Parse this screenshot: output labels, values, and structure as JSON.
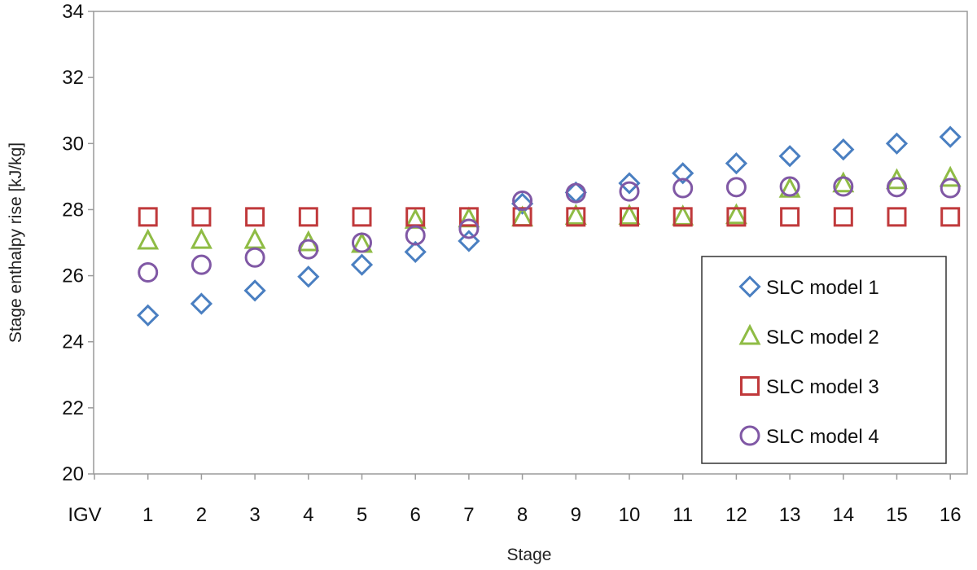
{
  "chart_data": {
    "type": "scatter",
    "title": "",
    "xlabel": "Stage",
    "ylabel": "Stage enthalpy rise [kJ/kg]",
    "ylim": [
      20,
      34
    ],
    "yticks": [
      20,
      22,
      24,
      26,
      28,
      30,
      32,
      34
    ],
    "categories": [
      "IGV",
      "1",
      "2",
      "3",
      "4",
      "5",
      "6",
      "7",
      "8",
      "9",
      "10",
      "11",
      "12",
      "13",
      "14",
      "15",
      "16"
    ],
    "grid": false,
    "legend_position": "bottom-right",
    "series": [
      {
        "name": "SLC model 1",
        "marker": "diamond",
        "color": "#4a7fc1",
        "x": [
          "1",
          "2",
          "3",
          "4",
          "5",
          "6",
          "7",
          "8",
          "9",
          "10",
          "11",
          "12",
          "13",
          "14",
          "15",
          "16"
        ],
        "values": [
          24.8,
          25.15,
          25.55,
          25.97,
          26.33,
          26.72,
          27.05,
          28.18,
          28.52,
          28.8,
          29.1,
          29.4,
          29.62,
          29.82,
          30.0,
          30.2
        ]
      },
      {
        "name": "SLC model 2",
        "marker": "triangle",
        "color": "#8fbc45",
        "x": [
          "1",
          "2",
          "3",
          "4",
          "5",
          "6",
          "7",
          "8",
          "9",
          "10",
          "11",
          "12",
          "13",
          "14",
          "15",
          "16"
        ],
        "values": [
          27.05,
          27.07,
          27.07,
          27.0,
          26.95,
          27.68,
          27.72,
          27.75,
          27.8,
          27.8,
          27.78,
          27.82,
          28.62,
          28.78,
          28.88,
          28.95
        ]
      },
      {
        "name": "SLC model 3",
        "marker": "square",
        "color": "#c0393b",
        "x": [
          "1",
          "2",
          "3",
          "4",
          "5",
          "6",
          "7",
          "8",
          "9",
          "10",
          "11",
          "12",
          "13",
          "14",
          "15",
          "16"
        ],
        "values": [
          27.78,
          27.78,
          27.78,
          27.78,
          27.78,
          27.78,
          27.78,
          27.78,
          27.78,
          27.78,
          27.78,
          27.78,
          27.78,
          27.78,
          27.78,
          27.78
        ]
      },
      {
        "name": "SLC model 4",
        "marker": "circle",
        "color": "#8058a5",
        "x": [
          "1",
          "2",
          "3",
          "4",
          "5",
          "6",
          "7",
          "8",
          "9",
          "10",
          "11",
          "12",
          "13",
          "14",
          "15",
          "16"
        ],
        "values": [
          26.1,
          26.33,
          26.55,
          26.8,
          27.0,
          27.22,
          27.42,
          28.27,
          28.5,
          28.55,
          28.65,
          28.68,
          28.7,
          28.7,
          28.68,
          28.65
        ]
      }
    ]
  }
}
